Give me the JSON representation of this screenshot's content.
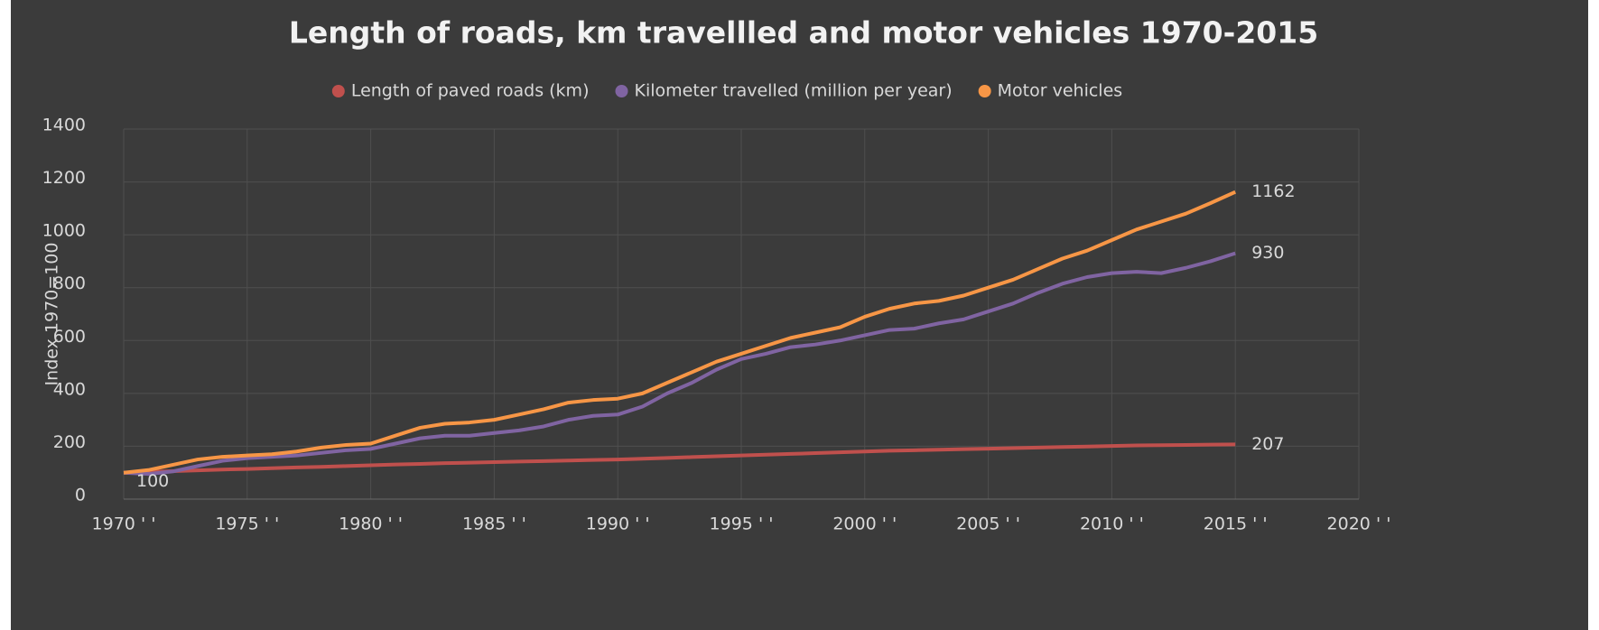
{
  "chart_data": {
    "type": "line",
    "title": "Length of roads, km travellled and motor vehicles 1970-2015",
    "y_label": "Index 1970=100",
    "x": [
      1970,
      1971,
      1972,
      1973,
      1974,
      1975,
      1976,
      1977,
      1978,
      1979,
      1980,
      1981,
      1982,
      1983,
      1984,
      1985,
      1986,
      1987,
      1988,
      1989,
      1990,
      1991,
      1992,
      1993,
      1994,
      1995,
      1996,
      1997,
      1998,
      1999,
      2000,
      2001,
      2002,
      2003,
      2004,
      2005,
      2006,
      2007,
      2008,
      2009,
      2010,
      2011,
      2012,
      2013,
      2014,
      2015
    ],
    "series": [
      {
        "name": "Length of paved roads (km)",
        "color": "#c0504d",
        "values": [
          100,
          103,
          106,
          109,
          112,
          114,
          117,
          120,
          122,
          125,
          128,
          131,
          133,
          136,
          138,
          140,
          142,
          144,
          146,
          148,
          150,
          153,
          156,
          159,
          162,
          165,
          168,
          171,
          174,
          177,
          180,
          183,
          185,
          187,
          189,
          191,
          193,
          195,
          197,
          199,
          201,
          203,
          204,
          205,
          206,
          207
        ]
      },
      {
        "name": "Kilometer travelled (million per year)",
        "color": "#8064a2",
        "values": [
          100,
          95,
          105,
          125,
          145,
          155,
          160,
          165,
          175,
          185,
          190,
          210,
          230,
          240,
          240,
          250,
          260,
          275,
          300,
          315,
          320,
          350,
          400,
          440,
          490,
          530,
          550,
          575,
          585,
          600,
          620,
          640,
          645,
          665,
          680,
          710,
          740,
          780,
          815,
          840,
          855,
          860,
          855,
          875,
          900,
          930
        ]
      },
      {
        "name": "Motor vehicles",
        "color": "#f79646",
        "values": [
          100,
          110,
          130,
          150,
          160,
          165,
          170,
          180,
          195,
          205,
          210,
          240,
          270,
          285,
          290,
          300,
          320,
          340,
          365,
          375,
          380,
          400,
          440,
          480,
          520,
          550,
          580,
          610,
          630,
          650,
          690,
          720,
          740,
          750,
          770,
          800,
          830,
          870,
          910,
          940,
          980,
          1020,
          1050,
          1080,
          1120,
          1162
        ]
      }
    ],
    "xlim": [
      1970,
      2020
    ],
    "xticks": [
      {
        "value": 1970,
        "label": "1970 ' '"
      },
      {
        "value": 1975,
        "label": "1975 ' '"
      },
      {
        "value": 1980,
        "label": "1980 ' '"
      },
      {
        "value": 1985,
        "label": "1985 ' '"
      },
      {
        "value": 1990,
        "label": "1990 ' '"
      },
      {
        "value": 1995,
        "label": "1995 ' '"
      },
      {
        "value": 2000,
        "label": "2000 ' '"
      },
      {
        "value": 2005,
        "label": "2005 ' '"
      },
      {
        "value": 2010,
        "label": "2010 ' '"
      },
      {
        "value": 2015,
        "label": "2015 ' '"
      },
      {
        "value": 2020,
        "label": "2020 ' '"
      }
    ],
    "ylim": [
      0,
      1400
    ],
    "yticks": [
      0,
      200,
      400,
      600,
      800,
      1000,
      1200,
      1400
    ],
    "grid": true,
    "legend": "top"
  }
}
